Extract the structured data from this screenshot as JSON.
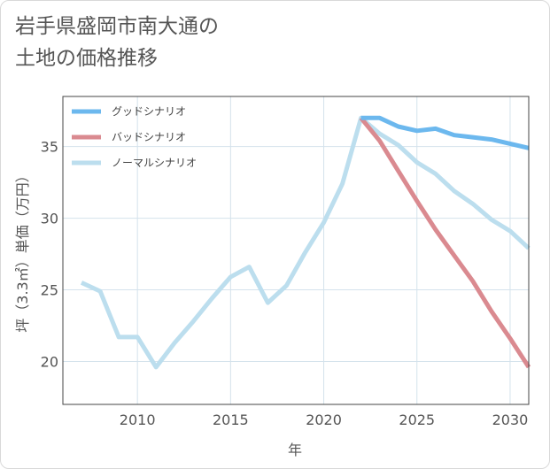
{
  "chart_data": {
    "type": "line",
    "title": "岩手県盛岡市南大通の\n土地の価格推移",
    "xlabel": "年",
    "ylabel": "坪（3.3㎡）単価（万円）",
    "xlim": [
      2006,
      2031
    ],
    "ylim": [
      17,
      38.5
    ],
    "x_ticks": [
      2010,
      2015,
      2020,
      2025,
      2030
    ],
    "y_ticks": [
      20,
      25,
      30,
      35
    ],
    "grid": true,
    "legend_position": "top-left",
    "series": [
      {
        "name": "グッドシナリオ",
        "color": "#6cb8ee",
        "points": [
          [
            2022,
            37.0
          ],
          [
            2023,
            37.0
          ],
          [
            2024,
            36.4
          ],
          [
            2025,
            36.1
          ],
          [
            2026,
            36.25
          ],
          [
            2027,
            35.8
          ],
          [
            2028,
            35.65
          ],
          [
            2029,
            35.5
          ],
          [
            2030,
            35.2
          ],
          [
            2031,
            34.9
          ]
        ]
      },
      {
        "name": "バッドシナリオ",
        "color": "#da8a90",
        "points": [
          [
            2022,
            37.0
          ],
          [
            2023,
            35.4
          ],
          [
            2024,
            33.3
          ],
          [
            2025,
            31.2
          ],
          [
            2026,
            29.2
          ],
          [
            2027,
            27.4
          ],
          [
            2028,
            25.6
          ],
          [
            2029,
            23.5
          ],
          [
            2030,
            21.6
          ],
          [
            2031,
            19.6
          ]
        ]
      },
      {
        "name": "ノーマルシナリオ",
        "color": "#bcdeee",
        "points": [
          [
            2007,
            25.5
          ],
          [
            2008,
            24.9
          ],
          [
            2009,
            21.7
          ],
          [
            2010,
            21.7
          ],
          [
            2011,
            19.6
          ],
          [
            2012,
            21.3
          ],
          [
            2013,
            22.8
          ],
          [
            2014,
            24.4
          ],
          [
            2015,
            25.9
          ],
          [
            2016,
            26.6
          ],
          [
            2017,
            24.1
          ],
          [
            2018,
            25.3
          ],
          [
            2019,
            27.6
          ],
          [
            2020,
            29.7
          ],
          [
            2021,
            32.4
          ],
          [
            2022,
            37.0
          ],
          [
            2023,
            35.9
          ],
          [
            2024,
            35.1
          ],
          [
            2025,
            33.9
          ],
          [
            2026,
            33.1
          ],
          [
            2027,
            31.9
          ],
          [
            2028,
            31.0
          ],
          [
            2029,
            29.9
          ],
          [
            2030,
            29.1
          ],
          [
            2031,
            27.9
          ]
        ]
      }
    ]
  }
}
